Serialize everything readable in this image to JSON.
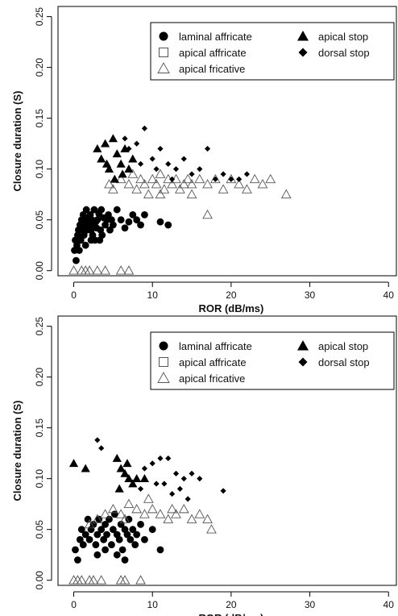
{
  "chart_data": [
    {
      "type": "scatter",
      "xlabel": "ROR (dB/ms)",
      "ylabel": "Closure duration (S)",
      "xlim": [
        -2,
        41
      ],
      "ylim": [
        -0.005,
        0.26
      ],
      "xticks": [
        "0",
        "10",
        "20",
        "30",
        "40"
      ],
      "yticks": [
        "0.00",
        "0.05",
        "0.10",
        "0.15",
        "0.20",
        "0.25"
      ],
      "grid": false,
      "legend_position": "top-right",
      "colors": {
        "ink": "#000000",
        "open": "#555555"
      },
      "series": [
        {
          "name": "laminal affricate",
          "marker": "filled-circle",
          "points": [
            [
              0.1,
              0.02
            ],
            [
              0.2,
              0.03
            ],
            [
              0.3,
              0.01
            ],
            [
              0.4,
              0.025
            ],
            [
              0.5,
              0.035
            ],
            [
              0.6,
              0.04
            ],
            [
              0.8,
              0.045
            ],
            [
              0.9,
              0.03
            ],
            [
              1.0,
              0.05
            ],
            [
              1.1,
              0.04
            ],
            [
              1.2,
              0.055
            ],
            [
              1.3,
              0.035
            ],
            [
              1.4,
              0.045
            ],
            [
              1.5,
              0.05
            ],
            [
              1.6,
              0.06
            ],
            [
              1.7,
              0.04
            ],
            [
              1.8,
              0.048
            ],
            [
              1.9,
              0.052
            ],
            [
              2.0,
              0.045
            ],
            [
              2.1,
              0.055
            ],
            [
              2.2,
              0.04
            ],
            [
              2.3,
              0.05
            ],
            [
              2.4,
              0.035
            ],
            [
              2.5,
              0.045
            ],
            [
              2.6,
              0.06
            ],
            [
              2.7,
              0.03
            ],
            [
              2.8,
              0.048
            ],
            [
              2.9,
              0.042
            ],
            [
              3.0,
              0.05
            ],
            [
              3.2,
              0.056
            ],
            [
              3.4,
              0.04
            ],
            [
              3.5,
              0.06
            ],
            [
              3.6,
              0.035
            ],
            [
              3.8,
              0.052
            ],
            [
              4.0,
              0.045
            ],
            [
              4.2,
              0.05
            ],
            [
              4.4,
              0.055
            ],
            [
              4.6,
              0.04
            ],
            [
              4.8,
              0.05
            ],
            [
              5.0,
              0.045
            ],
            [
              5.5,
              0.06
            ],
            [
              6.0,
              0.05
            ],
            [
              6.5,
              0.042
            ],
            [
              7.0,
              0.048
            ],
            [
              7.5,
              0.055
            ],
            [
              8.0,
              0.05
            ],
            [
              8.5,
              0.045
            ],
            [
              9.0,
              0.055
            ],
            [
              11.0,
              0.048
            ],
            [
              12.0,
              0.045
            ],
            [
              0.7,
              0.02
            ],
            [
              1.5,
              0.025
            ],
            [
              2.2,
              0.03
            ],
            [
              3.3,
              0.03
            ]
          ]
        },
        {
          "name": "apical affricate",
          "marker": "open-square",
          "points": []
        },
        {
          "name": "apical fricative",
          "marker": "open-triangle",
          "points": [
            [
              0.0,
              0.0
            ],
            [
              1.0,
              0.0
            ],
            [
              1.5,
              0.0
            ],
            [
              2.0,
              0.0
            ],
            [
              3.0,
              0.0
            ],
            [
              4.0,
              0.0
            ],
            [
              6.0,
              0.0
            ],
            [
              7.0,
              0.0
            ],
            [
              4.5,
              0.085
            ],
            [
              5.0,
              0.08
            ],
            [
              6.0,
              0.09
            ],
            [
              7.0,
              0.085
            ],
            [
              7.5,
              0.095
            ],
            [
              8.0,
              0.08
            ],
            [
              8.5,
              0.09
            ],
            [
              9.0,
              0.085
            ],
            [
              9.5,
              0.075
            ],
            [
              10.0,
              0.09
            ],
            [
              10.5,
              0.085
            ],
            [
              11.0,
              0.095
            ],
            [
              11.5,
              0.08
            ],
            [
              12.0,
              0.09
            ],
            [
              12.5,
              0.085
            ],
            [
              13.0,
              0.09
            ],
            [
              13.5,
              0.08
            ],
            [
              14.0,
              0.085
            ],
            [
              14.5,
              0.09
            ],
            [
              15.0,
              0.085
            ],
            [
              16.0,
              0.09
            ],
            [
              17.0,
              0.085
            ],
            [
              18.0,
              0.09
            ],
            [
              19.0,
              0.08
            ],
            [
              20.0,
              0.09
            ],
            [
              21.0,
              0.085
            ],
            [
              22.0,
              0.08
            ],
            [
              23.0,
              0.09
            ],
            [
              24.0,
              0.085
            ],
            [
              25.0,
              0.09
            ],
            [
              27.0,
              0.075
            ],
            [
              17.0,
              0.055
            ],
            [
              15.0,
              0.075
            ],
            [
              11.0,
              0.075
            ]
          ]
        },
        {
          "name": "apical stop",
          "marker": "filled-triangle",
          "points": [
            [
              3.0,
              0.12
            ],
            [
              3.5,
              0.11
            ],
            [
              4.0,
              0.125
            ],
            [
              4.5,
              0.1
            ],
            [
              5.0,
              0.13
            ],
            [
              5.5,
              0.115
            ],
            [
              6.0,
              0.105
            ],
            [
              6.5,
              0.12
            ],
            [
              7.0,
              0.1
            ],
            [
              7.5,
              0.11
            ],
            [
              5.2,
              0.09
            ],
            [
              6.2,
              0.095
            ],
            [
              4.2,
              0.105
            ]
          ]
        },
        {
          "name": "dorsal stop",
          "marker": "filled-diamond",
          "points": [
            [
              6.5,
              0.13
            ],
            [
              7.0,
              0.12
            ],
            [
              8.0,
              0.125
            ],
            [
              9.0,
              0.14
            ],
            [
              10.0,
              0.11
            ],
            [
              11.0,
              0.12
            ],
            [
              12.0,
              0.105
            ],
            [
              13.0,
              0.1
            ],
            [
              14.0,
              0.11
            ],
            [
              15.0,
              0.095
            ],
            [
              16.0,
              0.1
            ],
            [
              17.0,
              0.12
            ],
            [
              18.0,
              0.09
            ],
            [
              19.0,
              0.095
            ],
            [
              20.0,
              0.09
            ],
            [
              21.0,
              0.09
            ],
            [
              22.0,
              0.095
            ],
            [
              12.5,
              0.09
            ],
            [
              10.5,
              0.1
            ],
            [
              8.5,
              0.105
            ]
          ]
        }
      ]
    },
    {
      "type": "scatter",
      "xlabel": "ROR (dB/ms)",
      "ylabel": "Closure duration (S)",
      "xlim": [
        -2,
        41
      ],
      "ylim": [
        -0.005,
        0.26
      ],
      "xticks": [
        "0",
        "10",
        "20",
        "30",
        "40"
      ],
      "yticks": [
        "0.00",
        "0.05",
        "0.10",
        "0.15",
        "0.20",
        "0.25"
      ],
      "grid": false,
      "legend_position": "top-right",
      "colors": {
        "ink": "#000000",
        "open": "#555555"
      },
      "series": [
        {
          "name": "laminal affricate",
          "marker": "filled-circle",
          "points": [
            [
              0.2,
              0.03
            ],
            [
              0.5,
              0.02
            ],
            [
              0.8,
              0.04
            ],
            [
              1.0,
              0.05
            ],
            [
              1.2,
              0.035
            ],
            [
              1.5,
              0.045
            ],
            [
              1.8,
              0.06
            ],
            [
              2.0,
              0.04
            ],
            [
              2.2,
              0.05
            ],
            [
              2.5,
              0.055
            ],
            [
              2.8,
              0.035
            ],
            [
              3.0,
              0.045
            ],
            [
              3.2,
              0.06
            ],
            [
              3.5,
              0.05
            ],
            [
              3.8,
              0.04
            ],
            [
              4.0,
              0.055
            ],
            [
              4.2,
              0.045
            ],
            [
              4.5,
              0.06
            ],
            [
              4.8,
              0.035
            ],
            [
              5.0,
              0.05
            ],
            [
              5.2,
              0.065
            ],
            [
              5.5,
              0.045
            ],
            [
              5.8,
              0.04
            ],
            [
              6.0,
              0.055
            ],
            [
              6.2,
              0.03
            ],
            [
              6.5,
              0.05
            ],
            [
              6.8,
              0.045
            ],
            [
              7.0,
              0.06
            ],
            [
              7.2,
              0.04
            ],
            [
              7.5,
              0.05
            ],
            [
              7.8,
              0.035
            ],
            [
              8.0,
              0.045
            ],
            [
              8.5,
              0.055
            ],
            [
              9.0,
              0.04
            ],
            [
              10.0,
              0.05
            ],
            [
              11.0,
              0.03
            ],
            [
              4.0,
              0.03
            ],
            [
              5.5,
              0.025
            ],
            [
              6.5,
              0.02
            ],
            [
              3.0,
              0.025
            ]
          ]
        },
        {
          "name": "apical affricate",
          "marker": "open-square",
          "points": []
        },
        {
          "name": "apical fricative",
          "marker": "open-triangle",
          "points": [
            [
              0.0,
              0.0
            ],
            [
              0.5,
              0.0
            ],
            [
              1.0,
              0.0
            ],
            [
              2.0,
              0.0
            ],
            [
              2.5,
              0.0
            ],
            [
              3.5,
              0.0
            ],
            [
              6.0,
              0.0
            ],
            [
              6.5,
              0.0
            ],
            [
              8.5,
              0.0
            ],
            [
              2.0,
              0.055
            ],
            [
              3.0,
              0.06
            ],
            [
              4.0,
              0.065
            ],
            [
              5.0,
              0.07
            ],
            [
              6.0,
              0.065
            ],
            [
              7.0,
              0.075
            ],
            [
              8.0,
              0.07
            ],
            [
              9.0,
              0.065
            ],
            [
              10.0,
              0.07
            ],
            [
              11.0,
              0.065
            ],
            [
              12.0,
              0.06
            ],
            [
              13.0,
              0.065
            ],
            [
              14.0,
              0.07
            ],
            [
              15.0,
              0.06
            ],
            [
              16.0,
              0.065
            ],
            [
              17.0,
              0.06
            ],
            [
              17.5,
              0.05
            ],
            [
              9.5,
              0.08
            ],
            [
              6.5,
              0.06
            ],
            [
              12.5,
              0.07
            ]
          ]
        },
        {
          "name": "apical stop",
          "marker": "filled-triangle",
          "points": [
            [
              0.0,
              0.115
            ],
            [
              1.5,
              0.11
            ],
            [
              5.5,
              0.12
            ],
            [
              6.0,
              0.11
            ],
            [
              6.5,
              0.105
            ],
            [
              7.0,
              0.1
            ],
            [
              7.5,
              0.095
            ],
            [
              6.8,
              0.115
            ],
            [
              8.0,
              0.1
            ],
            [
              5.8,
              0.09
            ],
            [
              9.0,
              0.1
            ]
          ]
        },
        {
          "name": "dorsal stop",
          "marker": "filled-diamond",
          "points": [
            [
              3.0,
              0.138
            ],
            [
              3.5,
              0.13
            ],
            [
              9.0,
              0.11
            ],
            [
              10.0,
              0.115
            ],
            [
              11.0,
              0.12
            ],
            [
              12.0,
              0.12
            ],
            [
              13.0,
              0.105
            ],
            [
              14.0,
              0.1
            ],
            [
              15.0,
              0.105
            ],
            [
              16.0,
              0.1
            ],
            [
              19.0,
              0.088
            ],
            [
              11.5,
              0.095
            ],
            [
              13.5,
              0.09
            ],
            [
              10.5,
              0.095
            ],
            [
              12.5,
              0.085
            ],
            [
              14.5,
              0.08
            ],
            [
              8.5,
              0.09
            ]
          ]
        }
      ]
    }
  ]
}
